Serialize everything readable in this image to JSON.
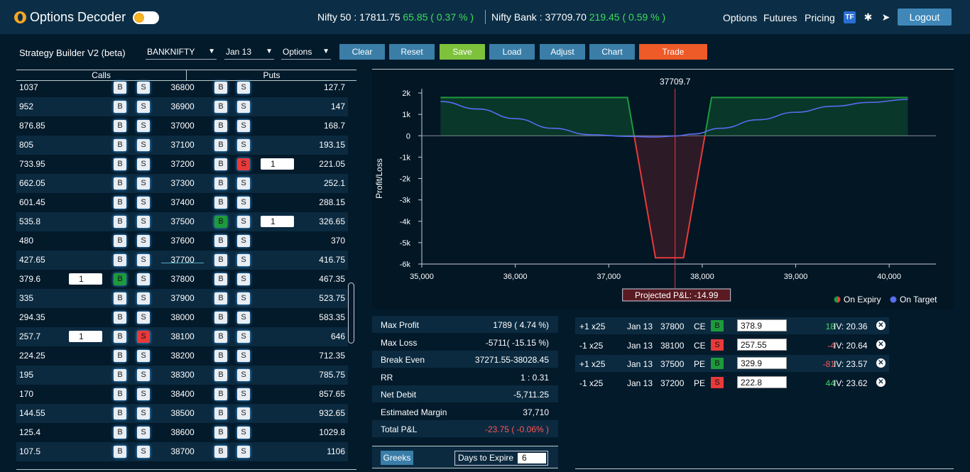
{
  "header": {
    "brand": "Options Decoder",
    "nifty50_label": "Nifty 50 : 17811.75",
    "nifty50_change": "65.85 ( 0.37 % )",
    "niftybank_label": "Nifty Bank : 37709.70",
    "niftybank_change": "219.45 ( 0.59 % )",
    "nav": [
      "Options",
      "Futures",
      "Pricing"
    ],
    "tf_icon_text": "TF",
    "logout": "Logout"
  },
  "toolbar": {
    "title": "Strategy Builder V2 (beta)",
    "symbol": "BANKNIFTY",
    "expiry": "Jan 13",
    "instrument": "Options",
    "buttons": [
      "Clear",
      "Reset",
      "Save",
      "Load",
      "Adjust",
      "Chart",
      "Trade"
    ]
  },
  "chain": {
    "calls_header": "Calls",
    "puts_header": "Puts",
    "b": "B",
    "s": "S",
    "rows": [
      {
        "call": "1037",
        "strike": "36800",
        "put": "127.7"
      },
      {
        "call": "952",
        "strike": "36900",
        "put": "147"
      },
      {
        "call": "876.85",
        "strike": "37000",
        "put": "168.7"
      },
      {
        "call": "805",
        "strike": "37100",
        "put": "193.15"
      },
      {
        "call": "733.95",
        "strike": "37200",
        "put": "221.05",
        "put_sel": "S",
        "put_qty": "1"
      },
      {
        "call": "662.05",
        "strike": "37300",
        "put": "252.1"
      },
      {
        "call": "601.45",
        "strike": "37400",
        "put": "288.15"
      },
      {
        "call": "535.8",
        "strike": "37500",
        "put": "326.65",
        "put_sel": "B",
        "put_qty": "1"
      },
      {
        "call": "480",
        "strike": "37600",
        "put": "370"
      },
      {
        "call": "427.65",
        "strike": "37700",
        "put": "416.75",
        "atm": true
      },
      {
        "call": "379.6",
        "strike": "37800",
        "put": "467.35",
        "call_sel": "B",
        "call_qty": "1"
      },
      {
        "call": "335",
        "strike": "37900",
        "put": "523.75"
      },
      {
        "call": "294.35",
        "strike": "38000",
        "put": "583.35"
      },
      {
        "call": "257.7",
        "strike": "38100",
        "put": "646",
        "call_sel": "S",
        "call_qty": "1"
      },
      {
        "call": "224.25",
        "strike": "38200",
        "put": "712.35"
      },
      {
        "call": "195",
        "strike": "38300",
        "put": "785.75"
      },
      {
        "call": "170",
        "strike": "38400",
        "put": "857.65"
      },
      {
        "call": "144.55",
        "strike": "38500",
        "put": "932.65"
      },
      {
        "call": "125.4",
        "strike": "38600",
        "put": "1029.8"
      },
      {
        "call": "107.5",
        "strike": "38700",
        "put": "1106"
      }
    ]
  },
  "chart_data": {
    "type": "area",
    "title": "",
    "xlabel": "",
    "ylabel": "Profit/Loss",
    "xlim": [
      35000,
      40500
    ],
    "ylim": [
      -6000,
      2000
    ],
    "x_ticks": [
      "35,000",
      "36,000",
      "37,000",
      "38,000",
      "39,000",
      "40,000"
    ],
    "y_ticks": [
      "2k",
      "1k",
      "0",
      "-1k",
      "-2k",
      "-3k",
      "-4k",
      "-5k",
      "-6k"
    ],
    "spot_label": "37709.7",
    "spot": 37709.7,
    "projected_label": "Projected P&L: -14.99",
    "legend_position": "bottom-right",
    "series": [
      {
        "name": "On Expiry",
        "color": "#1e9a3c",
        "x": [
          35200,
          37200,
          37271.55,
          37500,
          37800,
          38028.45,
          38100,
          40200
        ],
        "y": [
          1789,
          1789,
          0,
          -5711,
          -5711,
          0,
          1789,
          1789
        ]
      },
      {
        "name": "On Target",
        "color": "#5a6cf0",
        "x": [
          35200,
          35600,
          36000,
          36400,
          36800,
          37200,
          37500,
          37710,
          37900,
          38200,
          38600,
          39000,
          39400,
          39800,
          40200
        ],
        "y": [
          1600,
          1250,
          800,
          350,
          50,
          -30,
          -60,
          -15,
          80,
          350,
          750,
          1100,
          1380,
          1560,
          1700
        ]
      }
    ]
  },
  "stats": [
    {
      "k": "Max Profit",
      "v": "1789 ( 4.74 %)"
    },
    {
      "k": "Max Loss",
      "v": "-5711( -15.15 %)"
    },
    {
      "k": "Break Even",
      "v": "37271.55-38028.45"
    },
    {
      "k": "RR",
      "v": "1 : 0.31"
    },
    {
      "k": "Net Debit",
      "v": "-5,711.25"
    },
    {
      "k": "Estimated Margin",
      "v": "37,710"
    },
    {
      "k": "Total P&L",
      "v": "-23.75 ( -0.06% )"
    }
  ],
  "greeks": {
    "label": "Greeks",
    "dte_label": "Days to Expire",
    "dte_value": "6"
  },
  "positions": [
    {
      "qty": "+1 x25",
      "exp": "Jan 13",
      "strike": "37800",
      "type": "CE",
      "side": "B",
      "price": "378.9",
      "pnl": "18",
      "iv": "IV: 20.36"
    },
    {
      "qty": "-1 x25",
      "exp": "Jan 13",
      "strike": "38100",
      "type": "CE",
      "side": "S",
      "price": "257.55",
      "pnl": "-4",
      "iv": "IV: 20.64"
    },
    {
      "qty": "+1 x25",
      "exp": "Jan 13",
      "strike": "37500",
      "type": "PE",
      "side": "B",
      "price": "329.9",
      "pnl": "-81",
      "iv": "IV: 23.57"
    },
    {
      "qty": "-1 x25",
      "exp": "Jan 13",
      "strike": "37200",
      "type": "PE",
      "side": "S",
      "price": "222.8",
      "pnl": "44",
      "iv": "IV: 23.62"
    }
  ],
  "colors": {
    "positive": "#3ddc5c",
    "negative": "#ff5555",
    "accent": "#3a7ea8"
  }
}
